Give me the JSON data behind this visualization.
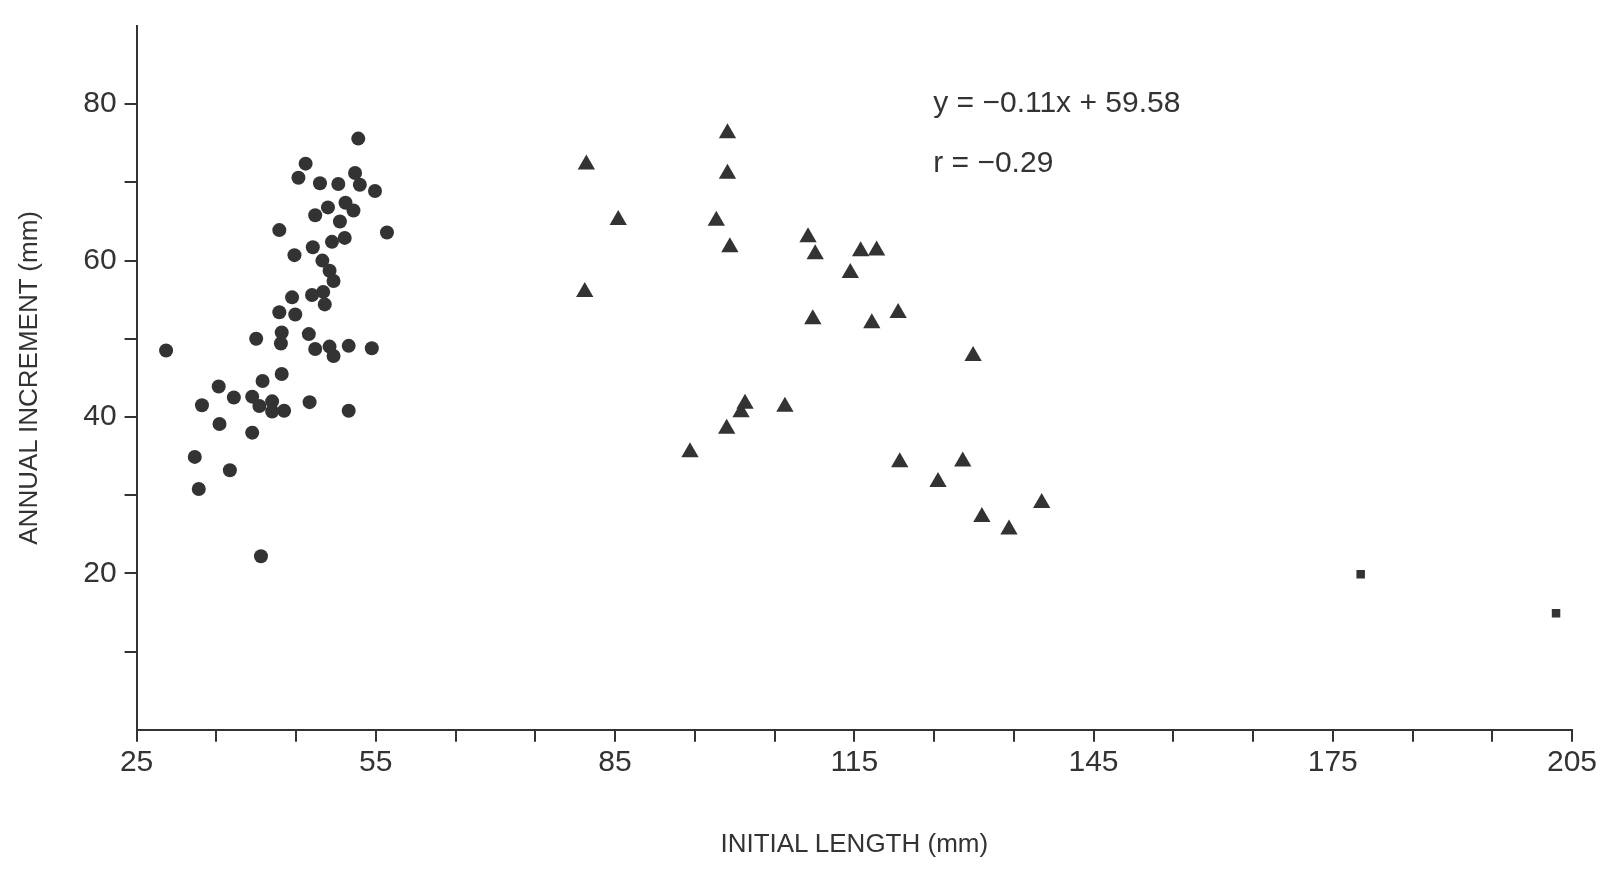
{
  "chart_data": {
    "type": "scatter",
    "xlabel": "INITIAL LENGTH (mm)",
    "ylabel": "ANNUAL INCREMENT (mm)",
    "annotations": [
      "y = −0.11x + 59.58",
      "r = −0.29"
    ],
    "xlim": [
      25,
      205
    ],
    "ylim": [
      0,
      90
    ],
    "xticks": [
      25,
      {
        "value": 35,
        "label": null
      },
      {
        "value": 45,
        "label": null
      },
      55,
      {
        "value": 65,
        "label": null
      },
      {
        "value": 75,
        "label": null
      },
      85,
      {
        "value": 95,
        "label": null
      },
      {
        "value": 105,
        "label": null
      },
      115,
      {
        "value": 125,
        "label": null
      },
      {
        "value": 135,
        "label": null
      },
      145,
      {
        "value": 155,
        "label": null
      },
      {
        "value": 165,
        "label": null
      },
      175,
      {
        "value": 185,
        "label": null
      },
      {
        "value": 195,
        "label": null
      },
      205
    ],
    "yticks": [
      {
        "value": 10,
        "label": null
      },
      20,
      {
        "value": 30,
        "label": null
      },
      40,
      {
        "value": 50,
        "label": null
      },
      60,
      {
        "value": 70,
        "label": null
      },
      80
    ],
    "grid": false,
    "legend": false,
    "series": [
      {
        "color": "#333333",
        "marker": "circle",
        "x": [
          52.8,
          46.2,
          45.3,
          48.0,
          50.3,
          52.4,
          53.0,
          54.9,
          49.0,
          47.4,
          51.2,
          52.2,
          50.5,
          42.9,
          56.4,
          51.1,
          49.5,
          47.1,
          44.8,
          48.3,
          49.2,
          49.7,
          44.5,
          47.0,
          48.4,
          48.6,
          42.9,
          44.9,
          43.2,
          43.1,
          40.0,
          46.6,
          28.7,
          47.4,
          49.2,
          49.7,
          51.6,
          54.5,
          43.2,
          40.8,
          35.3,
          33.2,
          37.2,
          39.5,
          40.4,
          42.0,
          42.0,
          43.5,
          46.7,
          51.6,
          35.4,
          39.5,
          32.3,
          36.7,
          32.8,
          40.6
        ],
        "values": [
          75.6,
          72.4,
          70.6,
          69.9,
          69.8,
          71.2,
          69.7,
          68.9,
          66.8,
          65.8,
          67.4,
          66.4,
          65.0,
          63.9,
          63.6,
          62.9,
          62.4,
          61.7,
          60.7,
          60.0,
          58.7,
          57.4,
          55.3,
          55.6,
          56.0,
          54.4,
          53.4,
          53.1,
          50.8,
          49.4,
          50.0,
          50.6,
          48.5,
          48.7,
          49.0,
          47.8,
          49.1,
          48.8,
          45.5,
          44.6,
          43.9,
          41.5,
          42.5,
          42.6,
          41.4,
          42.0,
          40.7,
          40.8,
          41.9,
          40.8,
          39.1,
          38.0,
          34.9,
          33.2,
          30.8,
          22.2
        ]
      },
      {
        "color": "#333333",
        "marker": "triangle",
        "x": [
          99.1,
          81.4,
          99.1,
          85.4,
          97.7,
          99.4,
          109.2,
          110.1,
          115.8,
          117.8,
          114.5,
          81.2,
          109.8,
          117.2,
          120.5,
          129.9,
          101.3,
          100.8,
          99.0,
          106.3,
          94.4,
          120.7,
          128.6,
          125.5,
          131.0,
          134.4,
          138.5
        ],
        "values": [
          76.3,
          72.3,
          71.1,
          65.2,
          65.1,
          61.7,
          63.0,
          60.8,
          61.2,
          61.3,
          58.4,
          56.0,
          52.5,
          52.0,
          53.3,
          47.8,
          41.7,
          40.6,
          38.5,
          41.3,
          35.5,
          34.2,
          34.3,
          31.7,
          27.2,
          25.6,
          29.0
        ]
      },
      {
        "color": "#333333",
        "marker": "square",
        "x": [
          178.5,
          203.0
        ],
        "values": [
          19.9,
          14.9
        ]
      }
    ]
  }
}
